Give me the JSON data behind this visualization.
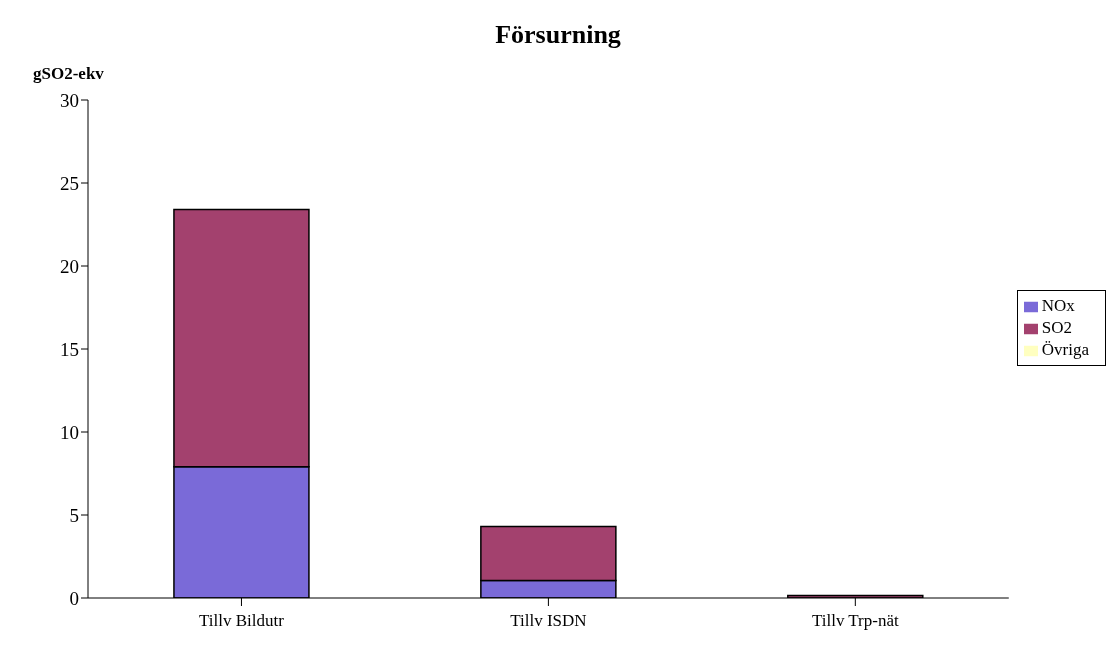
{
  "chart_data": {
    "type": "bar",
    "title": "Försurning",
    "ylabel": "gSO2-ekv",
    "stacked": true,
    "categories": [
      "Tillv Bildutr",
      "Tillv ISDN",
      "Tillv Trp-nät"
    ],
    "series": [
      {
        "name": "NOx",
        "color": "#7a6ad8",
        "values": [
          7.9,
          1.05,
          null
        ]
      },
      {
        "name": "SO2",
        "color": "#a3416e",
        "values": [
          15.5,
          3.25,
          0.15
        ]
      },
      {
        "name": "Övriga",
        "color": "#ffffc0",
        "values": [
          0,
          0,
          0
        ]
      }
    ],
    "ylim": [
      0,
      30
    ],
    "yticks": [
      0,
      5,
      10,
      15,
      20,
      25,
      30
    ],
    "grid": false,
    "legend": "right"
  }
}
